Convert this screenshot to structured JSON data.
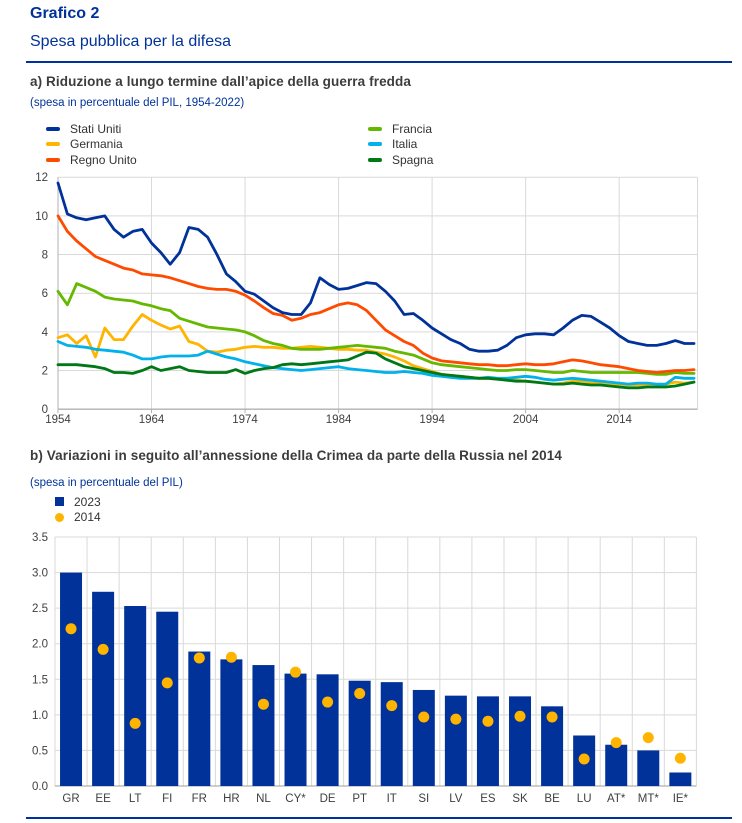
{
  "header": {
    "label": "Grafico 2",
    "title": "Spesa pubblica per la difesa"
  },
  "panel_a": {
    "heading": "a) Riduzione a lungo termine dall’apice della guerra fredda",
    "note": "(spesa in percentuale del PIL, 1954-2022)"
  },
  "panel_b": {
    "heading": "b) Variazioni in seguito all’annessione della Crimea da parte della Russia nel 2014",
    "note": "(spesa in percentuale del PIL)"
  },
  "colors": {
    "accent": "#003299",
    "grid": "#d9d9d9",
    "axis": "#b0b0b0",
    "tick_text": "#404040",
    "legend_text": "#333333"
  },
  "chart_data": [
    {
      "type": "line",
      "title": "a) Riduzione a lungo termine dall’apice della guerra fredda",
      "ylabel": "spesa in percentuale del PIL",
      "x_years": {
        "start": 1954,
        "end": 2022
      },
      "x_ticks": [
        1954,
        1964,
        1974,
        1984,
        1994,
        2004,
        2014
      ],
      "ylim": [
        0,
        12
      ],
      "y_ticks": [
        0,
        2,
        4,
        6,
        8,
        10,
        12
      ],
      "grid": true,
      "legend_position": "top-two-columns",
      "legend_columns": [
        [
          "Stati Uniti",
          "Germania",
          "Regno Unito"
        ],
        [
          "Francia",
          "Italia",
          "Spagna"
        ]
      ],
      "draw_order": [
        "Germania",
        "Italia",
        "Spagna",
        "Francia",
        "Regno Unito",
        "Stati Uniti"
      ],
      "series": [
        {
          "name": "Stati Uniti",
          "color": "#003299",
          "values": [
            11.7,
            10.1,
            9.9,
            9.8,
            9.9,
            10.0,
            9.3,
            8.9,
            9.2,
            9.3,
            8.6,
            8.1,
            7.5,
            8.1,
            9.4,
            9.3,
            8.9,
            8.0,
            7.0,
            6.6,
            6.1,
            5.95,
            5.6,
            5.25,
            5.0,
            4.9,
            4.9,
            5.5,
            6.8,
            6.45,
            6.2,
            6.25,
            6.4,
            6.55,
            6.5,
            6.1,
            5.6,
            4.9,
            4.95,
            4.6,
            4.2,
            3.9,
            3.6,
            3.4,
            3.1,
            3.0,
            3.0,
            3.05,
            3.3,
            3.7,
            3.85,
            3.9,
            3.9,
            3.85,
            4.2,
            4.6,
            4.85,
            4.8,
            4.5,
            4.2,
            3.8,
            3.5,
            3.4,
            3.3,
            3.3,
            3.4,
            3.55,
            3.4,
            3.4
          ]
        },
        {
          "name": "Germania",
          "color": "#FFB400",
          "values": [
            3.7,
            3.85,
            3.4,
            3.8,
            2.7,
            4.2,
            3.6,
            3.6,
            4.3,
            4.9,
            4.6,
            4.35,
            4.15,
            4.3,
            3.5,
            3.35,
            3.0,
            2.95,
            3.05,
            3.1,
            3.2,
            3.25,
            3.2,
            3.2,
            3.15,
            3.15,
            3.2,
            3.25,
            3.2,
            3.15,
            3.1,
            3.1,
            3.05,
            3.05,
            2.95,
            2.85,
            2.7,
            2.5,
            2.25,
            2.1,
            1.95,
            1.8,
            1.75,
            1.7,
            1.65,
            1.6,
            1.6,
            1.55,
            1.55,
            1.5,
            1.45,
            1.4,
            1.35,
            1.3,
            1.35,
            1.45,
            1.45,
            1.35,
            1.35,
            1.3,
            1.25,
            1.25,
            1.25,
            1.25,
            1.25,
            1.3,
            1.4,
            1.35,
            1.4
          ]
        },
        {
          "name": "Regno Unito",
          "color": "#FF4B00",
          "values": [
            10.0,
            9.2,
            8.7,
            8.3,
            7.9,
            7.7,
            7.5,
            7.3,
            7.2,
            7.0,
            6.95,
            6.9,
            6.8,
            6.65,
            6.5,
            6.35,
            6.25,
            6.2,
            6.2,
            6.1,
            5.9,
            5.6,
            5.25,
            4.95,
            4.85,
            4.6,
            4.7,
            4.9,
            5.0,
            5.2,
            5.4,
            5.5,
            5.4,
            5.1,
            4.6,
            4.1,
            3.8,
            3.5,
            3.3,
            2.9,
            2.65,
            2.5,
            2.45,
            2.4,
            2.35,
            2.3,
            2.3,
            2.25,
            2.25,
            2.3,
            2.35,
            2.3,
            2.3,
            2.35,
            2.45,
            2.55,
            2.5,
            2.4,
            2.3,
            2.25,
            2.2,
            2.1,
            2.0,
            1.95,
            1.9,
            1.95,
            2.0,
            2.0,
            2.05
          ]
        },
        {
          "name": "Francia",
          "color": "#65B800",
          "values": [
            6.1,
            5.4,
            6.5,
            6.3,
            6.1,
            5.8,
            5.7,
            5.65,
            5.6,
            5.45,
            5.35,
            5.2,
            5.1,
            4.7,
            4.55,
            4.4,
            4.25,
            4.2,
            4.15,
            4.1,
            4.0,
            3.8,
            3.55,
            3.4,
            3.3,
            3.15,
            3.1,
            3.1,
            3.1,
            3.15,
            3.2,
            3.25,
            3.3,
            3.25,
            3.2,
            3.15,
            3.0,
            2.9,
            2.8,
            2.6,
            2.4,
            2.3,
            2.25,
            2.2,
            2.15,
            2.1,
            2.05,
            2.0,
            2.0,
            2.05,
            2.05,
            2.0,
            1.95,
            1.9,
            1.9,
            2.0,
            1.95,
            1.9,
            1.9,
            1.9,
            1.9,
            1.9,
            1.9,
            1.85,
            1.8,
            1.8,
            1.9,
            1.85,
            1.85
          ]
        },
        {
          "name": "Italia",
          "color": "#00B1EA",
          "values": [
            3.5,
            3.3,
            3.25,
            3.2,
            3.1,
            3.05,
            3.0,
            2.95,
            2.8,
            2.6,
            2.6,
            2.7,
            2.75,
            2.75,
            2.75,
            2.8,
            3.0,
            2.85,
            2.7,
            2.6,
            2.45,
            2.35,
            2.25,
            2.15,
            2.1,
            2.05,
            2.0,
            2.05,
            2.1,
            2.15,
            2.2,
            2.1,
            2.05,
            2.0,
            1.95,
            1.9,
            1.9,
            1.95,
            1.9,
            1.85,
            1.75,
            1.7,
            1.65,
            1.6,
            1.6,
            1.6,
            1.65,
            1.6,
            1.6,
            1.65,
            1.7,
            1.65,
            1.55,
            1.5,
            1.55,
            1.6,
            1.55,
            1.5,
            1.45,
            1.4,
            1.35,
            1.3,
            1.35,
            1.35,
            1.3,
            1.3,
            1.65,
            1.6,
            1.6
          ]
        },
        {
          "name": "Spagna",
          "color": "#007816",
          "values": [
            2.3,
            2.3,
            2.3,
            2.25,
            2.2,
            2.1,
            1.9,
            1.9,
            1.85,
            2.0,
            2.2,
            2.0,
            2.1,
            2.2,
            2.0,
            1.95,
            1.9,
            1.9,
            1.9,
            2.05,
            1.85,
            2.0,
            2.1,
            2.15,
            2.3,
            2.35,
            2.3,
            2.35,
            2.4,
            2.45,
            2.5,
            2.55,
            2.75,
            2.95,
            2.9,
            2.6,
            2.4,
            2.2,
            2.1,
            2.0,
            1.9,
            1.8,
            1.75,
            1.7,
            1.65,
            1.6,
            1.6,
            1.55,
            1.5,
            1.45,
            1.45,
            1.4,
            1.35,
            1.3,
            1.3,
            1.35,
            1.3,
            1.25,
            1.25,
            1.2,
            1.15,
            1.1,
            1.1,
            1.15,
            1.15,
            1.15,
            1.2,
            1.3,
            1.4
          ]
        }
      ]
    },
    {
      "type": "bar",
      "title": "b) Variazioni in seguito all’annessione della Crimea da parte della Russia nel 2014",
      "ylabel": "spesa in percentuale del PIL",
      "categories": [
        "GR",
        "EE",
        "LT",
        "FI",
        "FR",
        "HR",
        "NL",
        "CY*",
        "DE",
        "PT",
        "IT",
        "SI",
        "LV",
        "ES",
        "SK",
        "BE",
        "LU",
        "AT*",
        "MT*",
        "IE*"
      ],
      "series": [
        {
          "name": "2023",
          "mark": "bar",
          "color": "#003299",
          "values": [
            3.0,
            2.73,
            2.53,
            2.45,
            1.89,
            1.78,
            1.7,
            1.58,
            1.57,
            1.48,
            1.46,
            1.35,
            1.27,
            1.26,
            1.26,
            1.12,
            0.71,
            0.58,
            0.5,
            0.19
          ]
        },
        {
          "name": "2014",
          "mark": "dot",
          "color": "#FFB400",
          "values": [
            2.21,
            1.92,
            0.88,
            1.45,
            1.8,
            1.81,
            1.15,
            1.6,
            1.18,
            1.3,
            1.13,
            0.97,
            0.94,
            0.91,
            0.98,
            0.97,
            0.38,
            0.61,
            0.68,
            0.39
          ]
        }
      ],
      "ylim": [
        0,
        3.5
      ],
      "y_ticks": [
        0.0,
        0.5,
        1.0,
        1.5,
        2.0,
        2.5,
        3.0,
        3.5
      ],
      "grid": true,
      "legend_position": "top"
    }
  ]
}
